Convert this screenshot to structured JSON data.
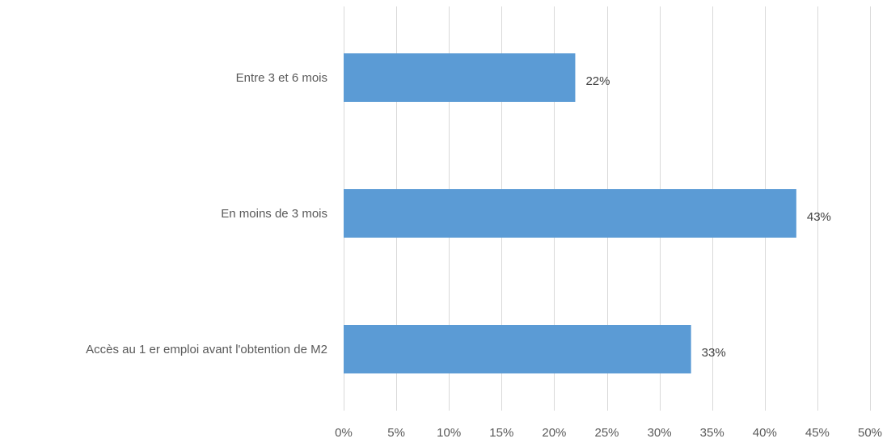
{
  "chart_data": {
    "type": "bar",
    "orientation": "horizontal",
    "categories": [
      "Entre 3 et 6 mois",
      "En moins de 3 mois",
      "Accès au 1 er emploi avant l'obtention de M2"
    ],
    "values": [
      22,
      43,
      33
    ],
    "data_labels": [
      "22%",
      "43%",
      "33%"
    ],
    "xlim": [
      0,
      50
    ],
    "x_ticks": [
      0,
      5,
      10,
      15,
      20,
      25,
      30,
      35,
      40,
      45,
      50
    ],
    "x_tick_labels": [
      "0%",
      "5%",
      "10%",
      "15%",
      "20%",
      "25%",
      "30%",
      "35%",
      "40%",
      "45%",
      "50%"
    ],
    "grid": true,
    "legend": "none",
    "title": "",
    "xlabel": "",
    "ylabel": ""
  },
  "colors": {
    "bar": "#5b9bd5",
    "grid": "#d9d9d9",
    "axis_text": "#595959",
    "data_label_text": "#404040"
  }
}
